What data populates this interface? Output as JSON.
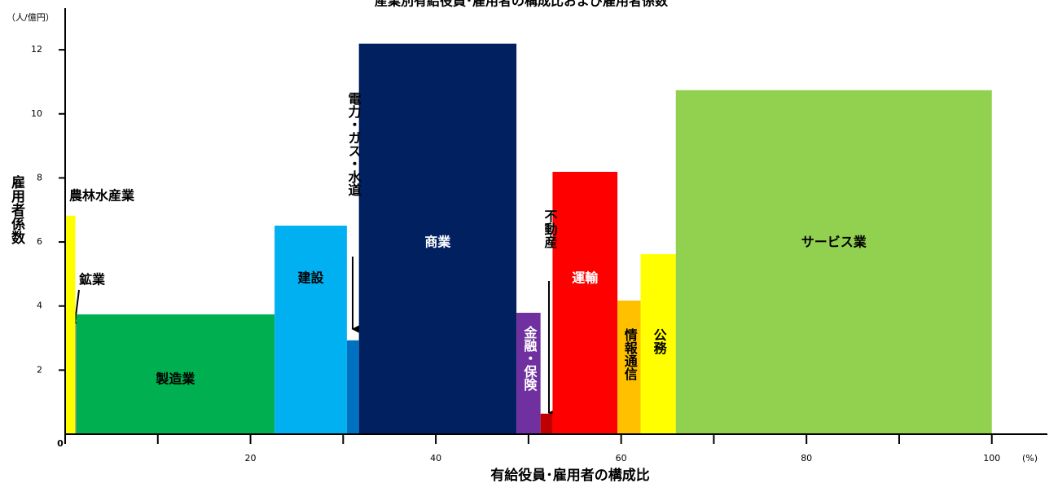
{
  "chart_data": {
    "type": "mekko",
    "title": "産業別有給役員･雇用者の構成比および雇用者係数",
    "y_unit": "（人/億円）",
    "y_label": "雇用者係数",
    "x_label": "有給役員･雇用者の構成比",
    "x_unit": "(%)",
    "categories": [
      "農林水産業",
      "鉱業",
      "製造業",
      "建設",
      "電力・ガス・水道",
      "商業",
      "金融・保険",
      "不動産",
      "運輸",
      "情報通信",
      "公務",
      "サービス業"
    ],
    "widths": [
      1.1,
      0.1,
      21.4,
      7.8,
      1.3,
      17.0,
      2.6,
      1.3,
      7.0,
      2.5,
      3.8,
      34.1
    ],
    "values": [
      6.82,
      3.45,
      3.74,
      6.51,
      2.93,
      12.19,
      3.79,
      0.64,
      8.19,
      4.17,
      5.62,
      10.74
    ],
    "colors": [
      "#ffff00",
      "#7f7f7f",
      "#00b050",
      "#00b0f0",
      "#0070c0",
      "#002060",
      "#7030a0",
      "#c00000",
      "#ff0000",
      "#ffc000",
      "#ffff00",
      "#92d050"
    ],
    "xlim": [
      0,
      106
    ],
    "ylim": [
      0,
      13.3
    ],
    "xticks": [
      0,
      20,
      40,
      60,
      80,
      100
    ],
    "xminor_ticks": [
      10,
      30,
      50,
      70,
      90
    ],
    "yticks": [
      2,
      4,
      6,
      8,
      10,
      12
    ]
  }
}
